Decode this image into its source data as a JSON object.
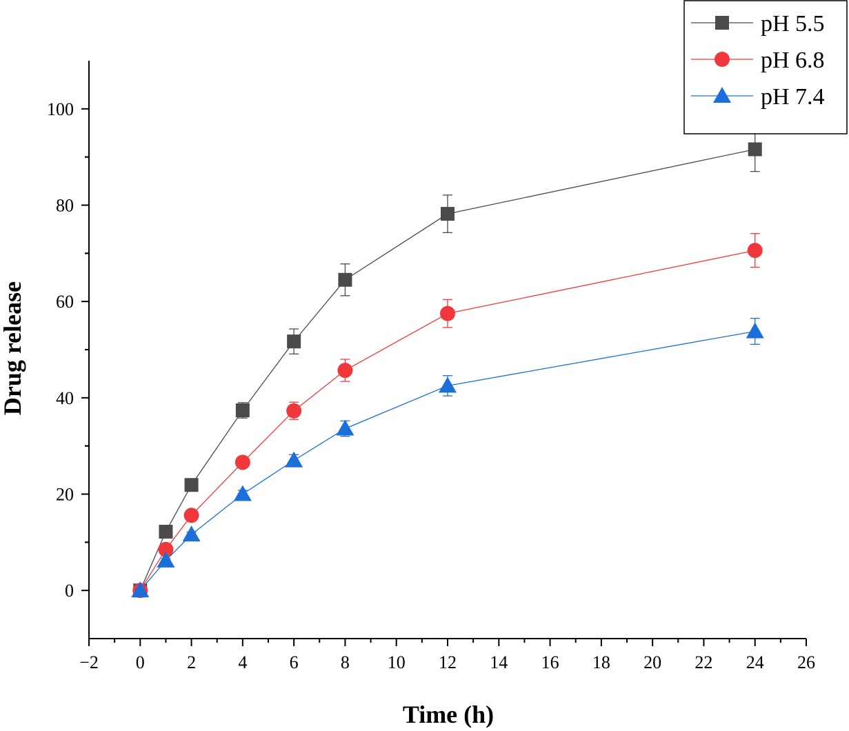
{
  "chart_data": {
    "type": "line",
    "title": "",
    "xlabel": "Time (h)",
    "ylabel": "Drug release",
    "xlim": [
      -2,
      26
    ],
    "ylim": [
      -10,
      110
    ],
    "x_ticks": [
      -2,
      0,
      2,
      4,
      6,
      8,
      10,
      12,
      14,
      16,
      18,
      20,
      22,
      24,
      26
    ],
    "x_tick_labels": [
      "−2",
      "0",
      "2",
      "4",
      "6",
      "8",
      "10",
      "12",
      "14",
      "16",
      "18",
      "20",
      "22",
      "24",
      "26"
    ],
    "y_ticks": [
      0,
      20,
      40,
      60,
      80,
      100
    ],
    "y_tick_labels": [
      "0",
      "20",
      "40",
      "60",
      "80",
      "100"
    ],
    "grid": false,
    "legend_position": "top-right",
    "x": [
      0,
      1,
      2,
      4,
      6,
      8,
      12,
      24
    ],
    "series": [
      {
        "name": "pH 5.5",
        "marker": "square",
        "color": "#4a4a4a",
        "values": [
          0,
          12.2,
          21.9,
          37.4,
          51.7,
          64.5,
          78.2,
          91.6
        ],
        "errors": [
          0,
          0.6,
          0.8,
          1.6,
          2.6,
          3.3,
          3.9,
          4.6
        ]
      },
      {
        "name": "pH 6.8",
        "marker": "circle",
        "color": "#f0373c",
        "values": [
          0,
          8.5,
          15.6,
          26.6,
          37.3,
          45.7,
          57.5,
          70.6
        ],
        "errors": [
          0,
          0.5,
          0.6,
          1.0,
          1.8,
          2.3,
          2.9,
          3.5
        ]
      },
      {
        "name": "pH 7.4",
        "marker": "triangle",
        "color": "#1c6fd8",
        "values": [
          0,
          6.2,
          11.6,
          20.0,
          27.0,
          33.6,
          42.5,
          53.8
        ],
        "errors": [
          0,
          0.4,
          0.5,
          0.8,
          1.2,
          1.6,
          2.1,
          2.7
        ]
      }
    ]
  }
}
